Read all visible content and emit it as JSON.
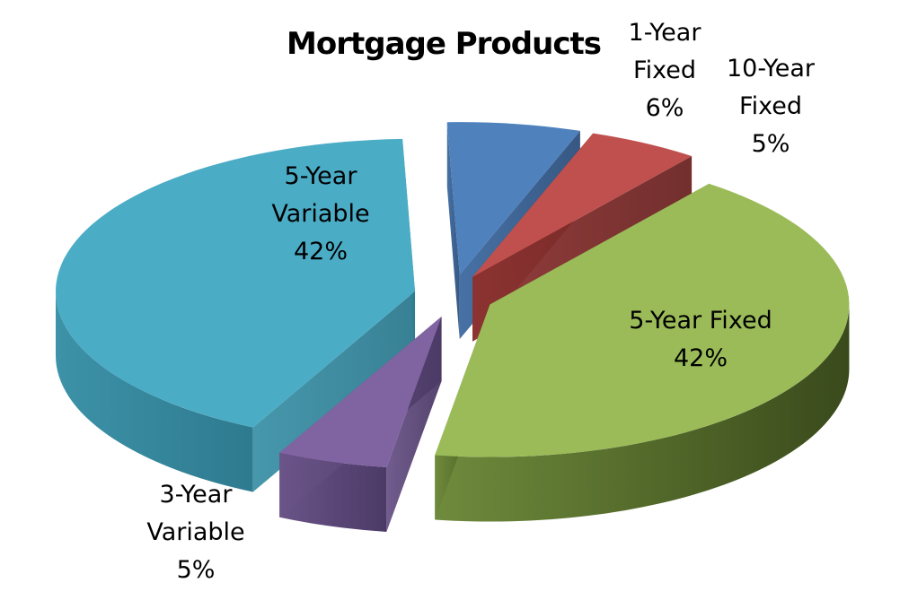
{
  "chart_data": {
    "type": "pie",
    "style": "3d-exploded",
    "title": "Mortgage Products",
    "slices": [
      {
        "label": "1-Year Fixed",
        "value": 6,
        "display": "6%",
        "color": "#4F81BD"
      },
      {
        "label": "10-Year Fixed",
        "value": 5,
        "display": "5%",
        "color": "#C0504D"
      },
      {
        "label": "5-Year Fixed",
        "value": 42,
        "display": "42%",
        "color": "#9BBB59"
      },
      {
        "label": "3-Year Variable",
        "value": 5,
        "display": "5%",
        "color": "#8064A2"
      },
      {
        "label": "5-Year Variable",
        "value": 42,
        "display": "42%",
        "color": "#4BACC6"
      }
    ]
  }
}
